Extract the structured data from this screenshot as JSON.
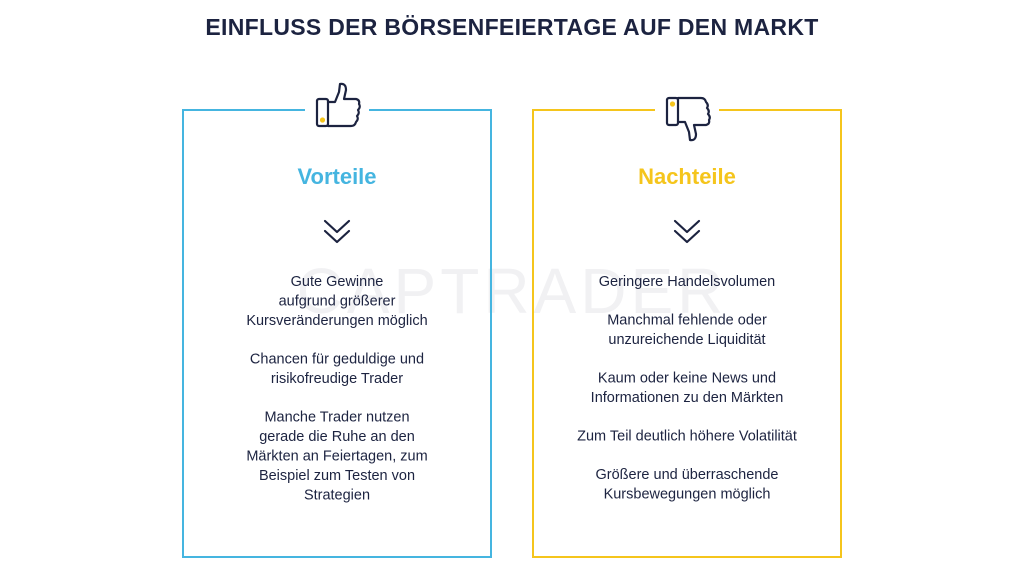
{
  "title": "EINFLUSS DER BÖRSENFEIERTAGE AUF DEN MARKT",
  "watermark": "CAPTRADER",
  "panels": [
    {
      "heading": "Vorteile",
      "color": "#45b5e0",
      "items": [
        {
          "lines": [
            "Gute Gewinne",
            "aufgrund größerer",
            "Kursveränderungen möglich"
          ]
        },
        {
          "lines": [
            "Chancen für geduldige und",
            "risikofreudige Trader"
          ]
        },
        {
          "lines": [
            "Manche Trader nutzen",
            "gerade die Ruhe an den",
            "Märkten an Feiertagen, zum",
            "Beispiel zum Testen von",
            "Strategien"
          ]
        }
      ]
    },
    {
      "heading": "Nachteile",
      "color": "#f5c51c",
      "items": [
        {
          "lines": [
            "Geringere Handelsvolumen"
          ]
        },
        {
          "lines": [
            "Manchmal fehlende oder",
            "unzureichende Liquidität"
          ]
        },
        {
          "lines": [
            "Kaum oder keine News und",
            "Informationen zu den Märkten"
          ]
        },
        {
          "lines": [
            "Zum Teil deutlich höhere Volatilität"
          ]
        },
        {
          "lines": [
            "Größere und überraschende",
            "Kursbewegungen möglich"
          ]
        }
      ]
    }
  ]
}
